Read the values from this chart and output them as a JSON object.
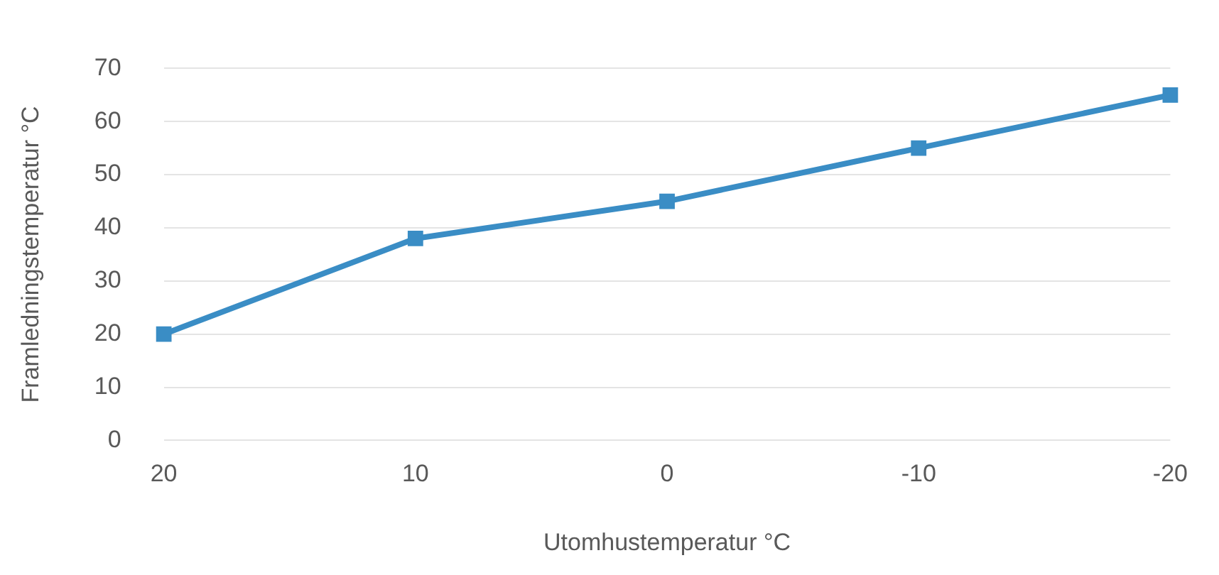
{
  "chart_data": {
    "type": "line",
    "xlabel": "Utomhustemperatur °C",
    "ylabel": "Framledningstemperatur °C",
    "categories": [
      "20",
      "10",
      "0",
      "-10",
      "-20"
    ],
    "series": [
      {
        "color": "#3a8dc5",
        "values": [
          20,
          38,
          45,
          55,
          65
        ]
      }
    ],
    "ylim": [
      0,
      70
    ],
    "yticks": [
      0,
      10,
      20,
      30,
      40,
      50,
      60,
      70
    ],
    "grid": "y",
    "marker": "square",
    "line_style": "solid",
    "legend": false
  }
}
